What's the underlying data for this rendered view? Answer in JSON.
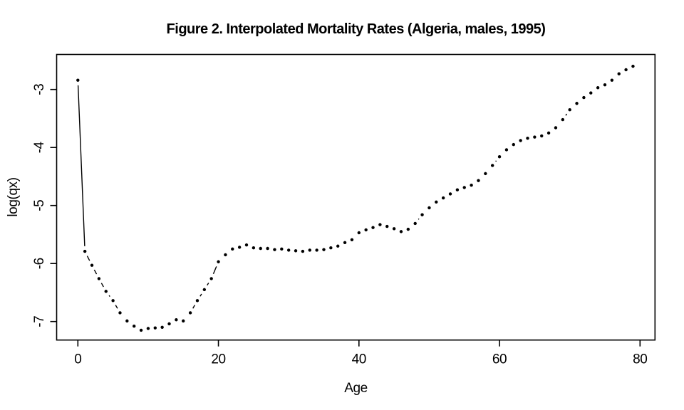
{
  "figure": {
    "background": "#ffffff",
    "foreground": "#000000"
  },
  "chart_data": {
    "type": "scatter",
    "style": "R base plot, type='b' (points joined by short gapped segments)",
    "title": "Figure 2. Interpolated Mortality Rates (Algeria, males, 1995)",
    "xlabel": "Age",
    "ylabel": "log(qx)",
    "point_color": "#000000",
    "line_color": "#000000",
    "grid": false,
    "legend": "none",
    "xticks": [
      0,
      20,
      40,
      60,
      80
    ],
    "yticks": [
      -7,
      -6,
      -5,
      -4,
      -3
    ],
    "xlim": [
      -3.2,
      82.2
    ],
    "ylim": [
      -7.33,
      -2.42
    ],
    "x": [
      0,
      1,
      2,
      3,
      4,
      5,
      6,
      7,
      8,
      9,
      10,
      11,
      12,
      13,
      14,
      15,
      16,
      17,
      18,
      19,
      20,
      21,
      22,
      23,
      24,
      25,
      26,
      27,
      28,
      29,
      30,
      31,
      32,
      33,
      34,
      35,
      36,
      37,
      38,
      39,
      40,
      41,
      42,
      43,
      44,
      45,
      46,
      47,
      48,
      49,
      50,
      51,
      52,
      53,
      54,
      55,
      56,
      57,
      58,
      59,
      60,
      61,
      62,
      63,
      64,
      65,
      66,
      67,
      68,
      69,
      70,
      71,
      72,
      73,
      74,
      75,
      76,
      77,
      78,
      79
    ],
    "series": [
      {
        "name": "log(qx)",
        "values": [
          -2.84,
          -5.79,
          -6.03,
          -6.26,
          -6.48,
          -6.64,
          -6.85,
          -6.99,
          -7.08,
          -7.15,
          -7.12,
          -7.11,
          -7.1,
          -7.04,
          -6.97,
          -6.99,
          -6.85,
          -6.64,
          -6.45,
          -6.26,
          -5.97,
          -5.85,
          -5.75,
          -5.72,
          -5.68,
          -5.73,
          -5.74,
          -5.74,
          -5.76,
          -5.75,
          -5.77,
          -5.78,
          -5.79,
          -5.77,
          -5.77,
          -5.76,
          -5.73,
          -5.7,
          -5.64,
          -5.59,
          -5.47,
          -5.42,
          -5.38,
          -5.33,
          -5.36,
          -5.4,
          -5.45,
          -5.41,
          -5.31,
          -5.16,
          -5.04,
          -4.94,
          -4.87,
          -4.8,
          -4.73,
          -4.69,
          -4.65,
          -4.57,
          -4.45,
          -4.31,
          -4.16,
          -4.04,
          -3.95,
          -3.88,
          -3.84,
          -3.82,
          -3.8,
          -3.75,
          -3.66,
          -3.52,
          -3.35,
          -3.24,
          -3.14,
          -3.06,
          -2.97,
          -2.92,
          -2.84,
          -2.73,
          -2.66,
          -2.6
        ]
      }
    ]
  }
}
